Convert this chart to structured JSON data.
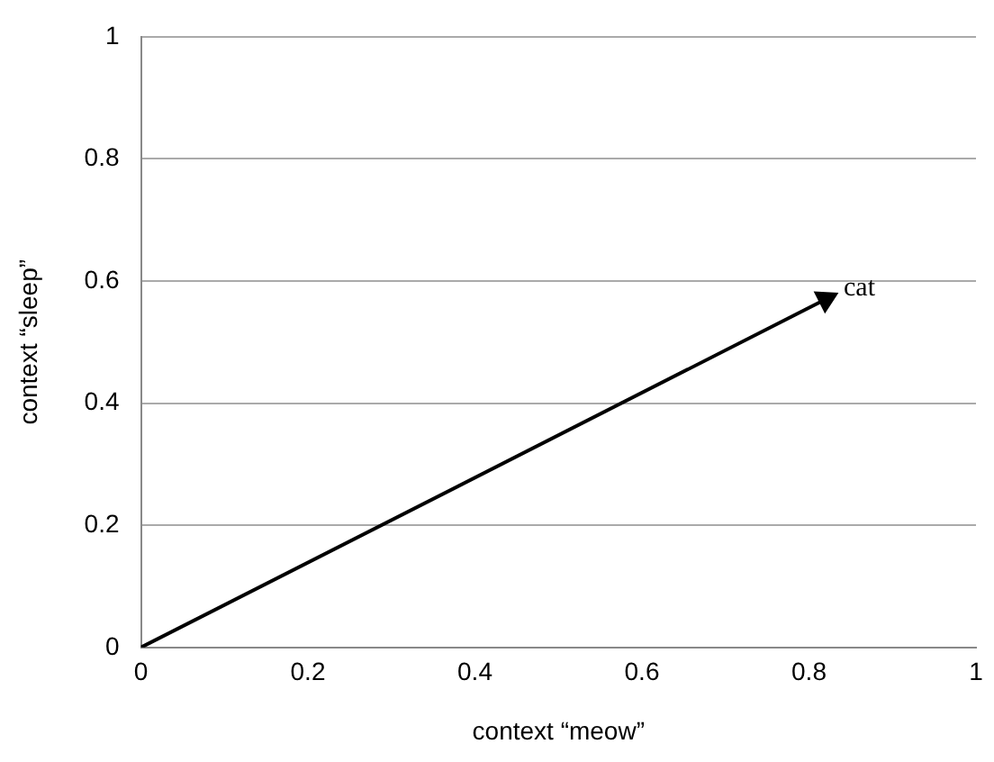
{
  "chart_data": {
    "type": "line",
    "xlabel": "context “meow”",
    "ylabel": "context “sleep”",
    "x": [
      0,
      0.82
    ],
    "series": [
      {
        "color": "#000000",
        "values": [
          0,
          0.57
        ]
      }
    ],
    "xlim": [
      0,
      1
    ],
    "xticks": [
      0,
      0.2,
      0.4,
      0.6,
      0.8,
      1
    ],
    "ylim": [
      0,
      1
    ],
    "yticks": [
      0,
      0.2,
      0.4,
      0.6,
      0.8,
      1
    ],
    "grid": "y",
    "legend": false,
    "line_style": "solid",
    "annotations": [
      {
        "text": "cat",
        "x": 0.82,
        "y": 0.57
      }
    ]
  }
}
